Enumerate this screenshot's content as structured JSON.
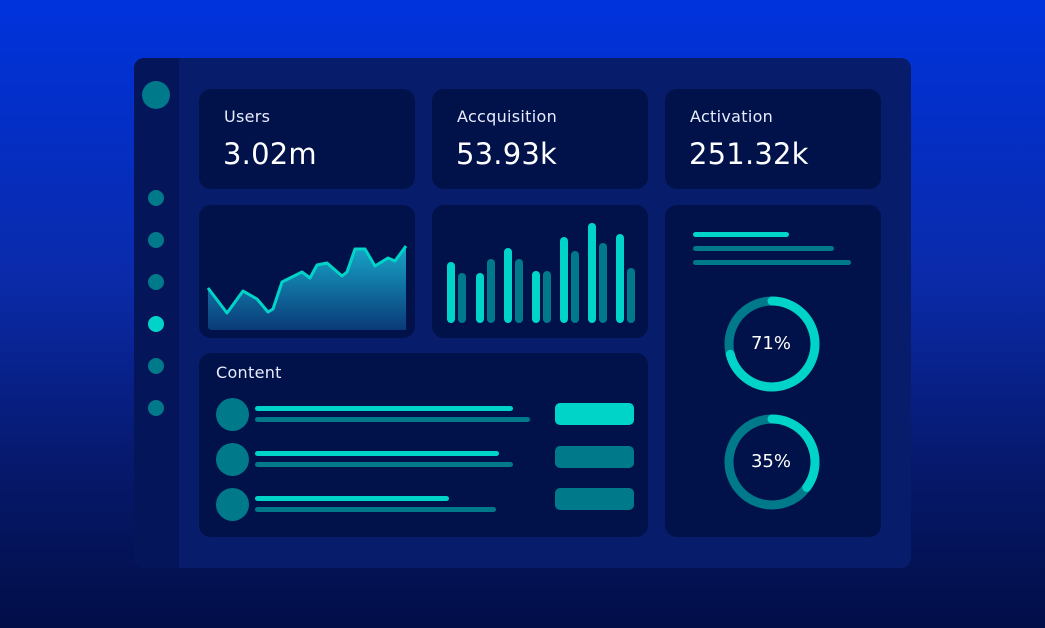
{
  "stats": [
    {
      "label": "Users",
      "value": "3.02m"
    },
    {
      "label": "Accquisition",
      "value": "53.93k"
    },
    {
      "label": "Activation",
      "value": "251.32k"
    }
  ],
  "content": {
    "title": "Content"
  },
  "donuts": [
    {
      "label": "71%",
      "value": 71
    },
    {
      "label": "35%",
      "value": 35
    }
  ],
  "colors": {
    "accent": "#00d4c8",
    "muted": "#00798a",
    "card": "#001249",
    "panel": "#071c6a"
  },
  "chart_data": [
    {
      "type": "area",
      "values": [
        42,
        17,
        39,
        31,
        18,
        21,
        48,
        58,
        52,
        65,
        67,
        54,
        58,
        81,
        81,
        64,
        72,
        69,
        84
      ],
      "ylim": [
        0,
        100
      ]
    },
    {
      "type": "bar",
      "values": [
        61,
        50,
        50,
        64,
        75,
        64,
        52,
        52,
        86,
        72,
        100,
        80,
        89,
        55
      ],
      "ylim": [
        0,
        100
      ]
    }
  ]
}
